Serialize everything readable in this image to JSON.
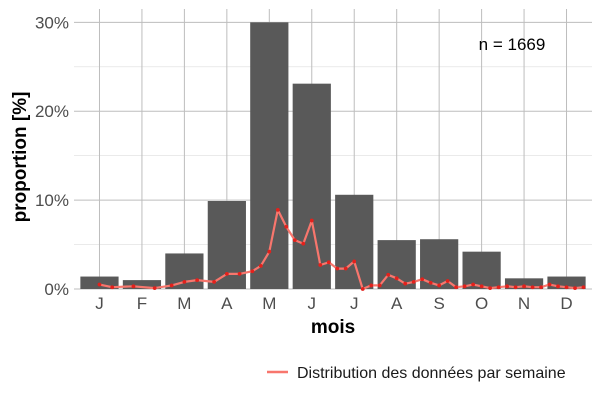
{
  "chart_data": {
    "type": "bar",
    "xlabel": "mois",
    "ylabel": "proportion [%]",
    "categories": [
      "J",
      "F",
      "M",
      "A",
      "M",
      "J",
      "J",
      "A",
      "S",
      "O",
      "N",
      "D"
    ],
    "values": [
      1.4,
      1.0,
      4.0,
      9.9,
      30.0,
      23.1,
      10.6,
      5.5,
      5.6,
      4.2,
      1.2,
      1.4
    ],
    "ylim": [
      0,
      31.5
    ],
    "yticks": [
      {
        "value": 0,
        "label": "0%"
      },
      {
        "value": 10,
        "label": "10%"
      },
      {
        "value": 20,
        "label": "20%"
      },
      {
        "value": 30,
        "label": "30%"
      }
    ],
    "grid": true,
    "annotation": "n = 1669",
    "colors": {
      "bar": "#595959",
      "line": "#f8766d",
      "points": "#e3211c",
      "grid": "#bdbdbd"
    },
    "line_series": {
      "name": "Distribution des données par semaine",
      "x": [
        1.0,
        1.3,
        1.8,
        2.3,
        2.7,
        3.0,
        3.3,
        3.7,
        4.0,
        4.3,
        4.6,
        4.8,
        5.0,
        5.2,
        5.4,
        5.6,
        5.8,
        6.0,
        6.2,
        6.4,
        6.6,
        6.8,
        7.0,
        7.2,
        7.4,
        7.6,
        7.8,
        8.0,
        8.2,
        8.4,
        8.6,
        8.8,
        9.0,
        9.2,
        9.4,
        9.6,
        9.8,
        10.0,
        10.2,
        10.4,
        10.6,
        10.8,
        11.0,
        11.2,
        11.4,
        11.6,
        11.8,
        12.0,
        12.2,
        12.4
      ],
      "y": [
        0.5,
        0.2,
        0.3,
        0.1,
        0.4,
        0.8,
        1.0,
        0.8,
        1.7,
        1.7,
        2.0,
        2.6,
        4.2,
        8.9,
        7.0,
        5.5,
        5.1,
        7.7,
        2.7,
        3.0,
        2.3,
        2.3,
        3.1,
        0.0,
        0.4,
        0.4,
        1.6,
        1.2,
        0.6,
        0.8,
        1.1,
        0.7,
        0.4,
        0.9,
        0.2,
        0.3,
        0.5,
        0.3,
        0.1,
        0.2,
        0.3,
        0.2,
        0.3,
        0.2,
        0.2,
        0.5,
        0.3,
        0.2,
        0.1,
        0.2
      ]
    },
    "legend": {
      "position": "bottom",
      "label": "Distribution des données par semaine"
    }
  }
}
